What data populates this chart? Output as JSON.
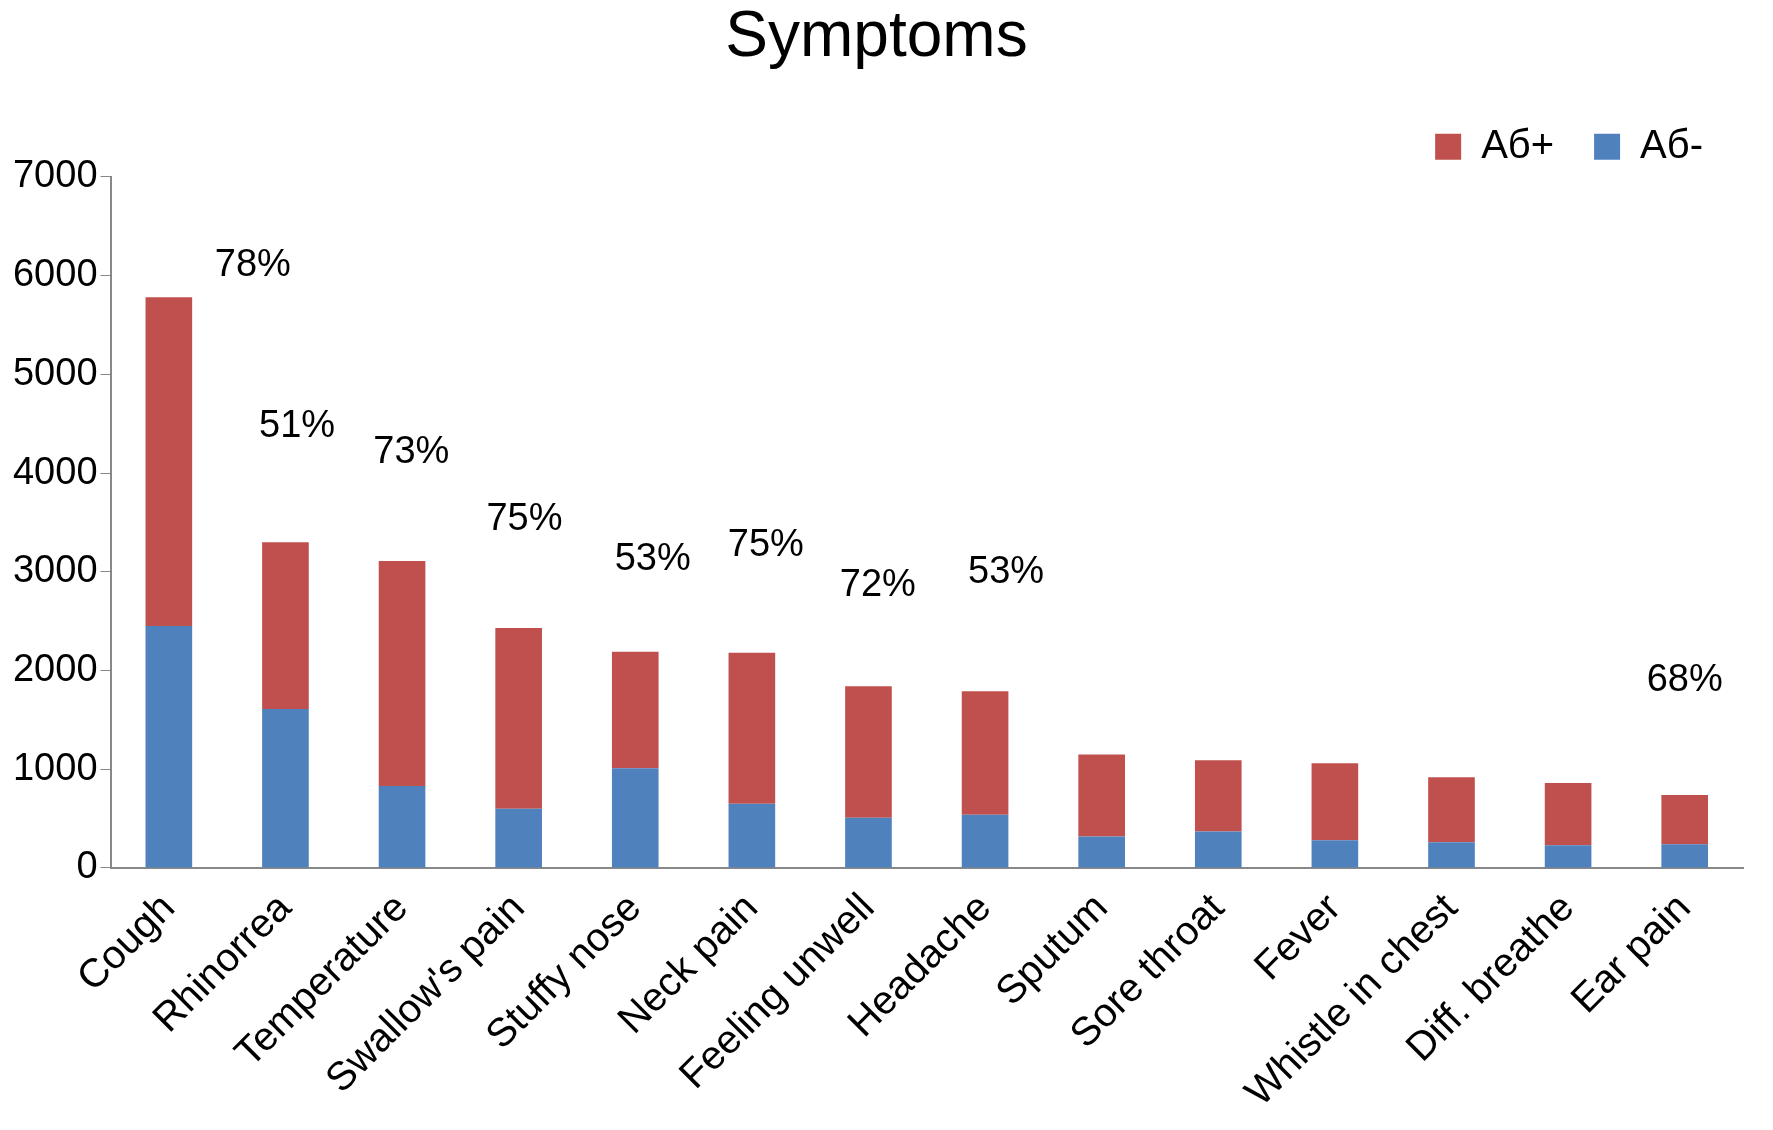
{
  "chart_data": {
    "type": "bar",
    "title": "Symptoms",
    "stacked": true,
    "categories": [
      "Cough",
      "Rhinorrea",
      "Temperature",
      "Swallow's pain",
      "Stuffy nose",
      "Neck pain",
      "Feeling unwell",
      "Headache",
      "Sputum",
      "Sore throat",
      "Fever",
      "Whistle in chest",
      "Diff. breathe",
      "Ear pain"
    ],
    "series": [
      {
        "name": "Аб-",
        "color": "#4f81bd",
        "values": [
          2450,
          1610,
          830,
          600,
          1010,
          650,
          510,
          540,
          320,
          370,
          280,
          260,
          230,
          240
        ]
      },
      {
        "name": "Аб+",
        "color": "#c0504d",
        "values": [
          3330,
          1690,
          2280,
          1830,
          1180,
          1530,
          1330,
          1250,
          830,
          720,
          780,
          660,
          630,
          500
        ]
      }
    ],
    "ylim": [
      0,
      7000
    ],
    "yticks": [
      0,
      1000,
      2000,
      3000,
      4000,
      5000,
      6000,
      7000
    ],
    "grid": false,
    "legend": "top right",
    "annotations": [
      "78%",
      "51%",
      "73%",
      "75%",
      "53%",
      "75%",
      "72%",
      "53%",
      "68%"
    ]
  }
}
